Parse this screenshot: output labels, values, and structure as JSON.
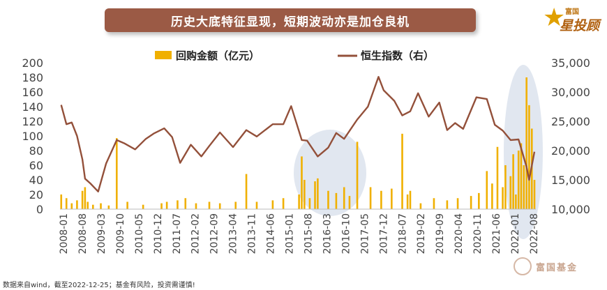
{
  "header": {
    "title": "历史大底特征显现，短期波动亦是加仓良机"
  },
  "logo": {
    "small_text": "富国",
    "main_text": "星投顾"
  },
  "watermark": {
    "text": "富国基金"
  },
  "footer": {
    "note": "数据来自wind，截至2022-12-25；基金有风险，投资需谨慎!"
  },
  "colors": {
    "bar": "#f0b000",
    "line": "#93503a",
    "banner": "#9b5a45",
    "highlight": "#c9d3e3"
  },
  "chart_data": {
    "type": "bar+line",
    "legend_position": "top",
    "grid": false,
    "x_tick_labels": [
      "2008-01",
      "2008-08",
      "2009-03",
      "2009-10",
      "2010-05",
      "2010-12",
      "2011-07",
      "2012-02",
      "2012-09",
      "2013-04",
      "2013-11",
      "2014-06",
      "2015-01",
      "2015-08",
      "2016-03",
      "2016-10",
      "2017-05",
      "2017-12",
      "2018-07",
      "2019-02",
      "2019-09",
      "2020-04",
      "2020-11",
      "2021-06",
      "2022-01",
      "2022-08"
    ],
    "y_left": {
      "ticks": [
        "0",
        "20",
        "40",
        "60",
        "80",
        "100",
        "120",
        "140",
        "160",
        "180",
        "200"
      ],
      "range": [
        0,
        200
      ]
    },
    "y_right": {
      "ticks": [
        "10,000",
        "15,000",
        "20,000",
        "25,000",
        "30,000",
        "35,000"
      ],
      "range": [
        10000,
        35000
      ]
    },
    "series": [
      {
        "name": "回购金额（亿元）",
        "type": "bar",
        "axis": "left",
        "x": [
          "2008-01",
          "2008-03",
          "2008-05",
          "2008-07",
          "2008-09",
          "2008-10",
          "2008-11",
          "2009-01",
          "2009-04",
          "2009-07",
          "2009-10",
          "2010-02",
          "2010-08",
          "2011-03",
          "2011-05",
          "2011-09",
          "2011-12",
          "2012-04",
          "2012-09",
          "2013-01",
          "2013-07",
          "2013-11",
          "2014-03",
          "2014-09",
          "2015-01",
          "2015-07",
          "2015-08",
          "2015-09",
          "2015-11",
          "2016-01",
          "2016-02",
          "2016-06",
          "2016-09",
          "2016-12",
          "2017-02",
          "2017-05",
          "2017-10",
          "2018-02",
          "2018-06",
          "2018-10",
          "2018-12",
          "2019-01",
          "2019-05",
          "2019-10",
          "2020-03",
          "2020-07",
          "2020-12",
          "2021-03",
          "2021-06",
          "2021-08",
          "2021-10",
          "2021-12",
          "2022-01",
          "2022-03",
          "2022-04",
          "2022-05",
          "2022-06",
          "2022-07",
          "2022-08",
          "2022-09",
          "2022-10",
          "2022-11",
          "2022-12"
        ],
        "values": [
          20,
          15,
          8,
          12,
          25,
          30,
          10,
          6,
          8,
          5,
          97,
          10,
          6,
          8,
          10,
          12,
          15,
          8,
          10,
          8,
          10,
          48,
          10,
          12,
          15,
          20,
          72,
          40,
          15,
          38,
          42,
          25,
          22,
          30,
          18,
          92,
          30,
          25,
          28,
          103,
          20,
          25,
          8,
          15,
          12,
          15,
          18,
          22,
          52,
          35,
          85,
          30,
          60,
          45,
          75,
          20,
          80,
          90,
          60,
          180,
          142,
          110,
          40
        ]
      },
      {
        "name": "恒生指数（右）",
        "type": "line",
        "axis": "right",
        "x": [
          "2008-01",
          "2008-03",
          "2008-05",
          "2008-07",
          "2008-09",
          "2008-10",
          "2008-12",
          "2009-03",
          "2009-06",
          "2009-10",
          "2010-01",
          "2010-05",
          "2010-09",
          "2010-12",
          "2011-04",
          "2011-07",
          "2011-10",
          "2012-02",
          "2012-06",
          "2012-09",
          "2013-01",
          "2013-06",
          "2013-11",
          "2014-03",
          "2014-09",
          "2015-01",
          "2015-04",
          "2015-08",
          "2015-10",
          "2016-02",
          "2016-06",
          "2016-09",
          "2016-12",
          "2017-05",
          "2017-09",
          "2018-01",
          "2018-03",
          "2018-07",
          "2018-10",
          "2019-01",
          "2019-04",
          "2019-08",
          "2019-12",
          "2020-03",
          "2020-06",
          "2020-09",
          "2021-02",
          "2021-06",
          "2021-09",
          "2021-12",
          "2022-03",
          "2022-06",
          "2022-09",
          "2022-10",
          "2022-12"
        ],
        "values": [
          27800,
          24500,
          24800,
          22500,
          18500,
          15200,
          14400,
          13000,
          17800,
          21800,
          21200,
          20200,
          22000,
          22900,
          23800,
          22300,
          17900,
          21000,
          19000,
          20800,
          23100,
          20600,
          23500,
          22400,
          24500,
          24500,
          27600,
          21800,
          21700,
          19000,
          20500,
          23000,
          22000,
          25300,
          27500,
          32600,
          30300,
          28500,
          26000,
          26700,
          29800,
          25800,
          28200,
          23500,
          24700,
          23700,
          29100,
          28800,
          24400,
          23400,
          21800,
          21900,
          17200,
          15000,
          19800
        ]
      }
    ]
  }
}
